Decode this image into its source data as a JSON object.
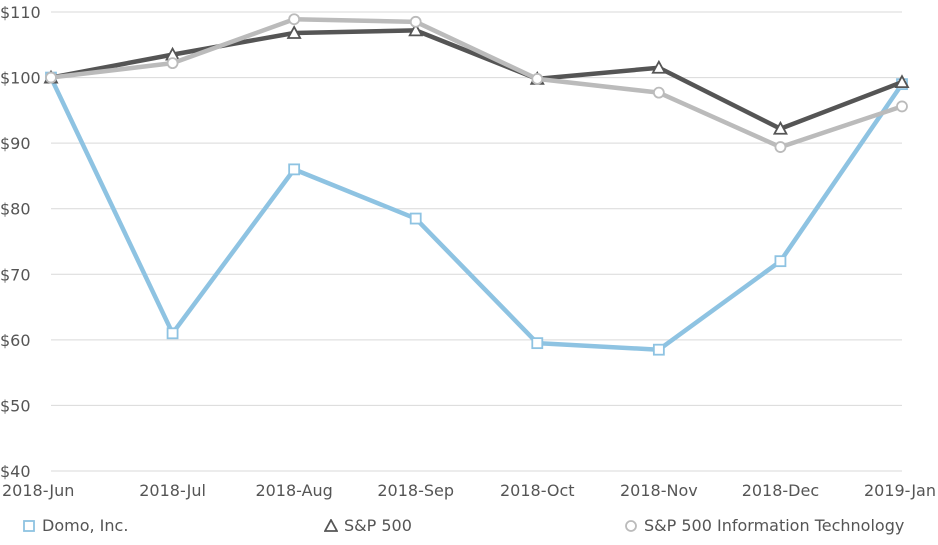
{
  "chart_data": {
    "type": "line",
    "title": "",
    "xlabel": "",
    "ylabel": "",
    "categories": [
      "2018-Jun",
      "2018-Jul",
      "2018-Aug",
      "2018-Sep",
      "2018-Oct",
      "2018-Nov",
      "2018-Dec",
      "2019-Jan"
    ],
    "y_ticks": [
      "$40",
      "$50",
      "$60",
      "$70",
      "$80",
      "$90",
      "$100",
      "$110"
    ],
    "ylim": [
      40,
      110
    ],
    "grid": true,
    "legend_position": "bottom",
    "series": [
      {
        "name": "Domo, Inc.",
        "marker": "square",
        "color": "#8ec3e2",
        "values": [
          100,
          61,
          86,
          78.5,
          59.5,
          58.5,
          72,
          99
        ]
      },
      {
        "name": "S&P 500",
        "marker": "triangle",
        "color": "#555555",
        "values": [
          100,
          103.5,
          106.8,
          107.2,
          99.8,
          101.5,
          92.2,
          99.3
        ]
      },
      {
        "name": "S&P 500 Information Technology",
        "marker": "circle",
        "color": "#bbbbbb",
        "values": [
          100,
          102.2,
          108.9,
          108.5,
          99.8,
          97.7,
          89.4,
          95.6
        ]
      }
    ]
  }
}
